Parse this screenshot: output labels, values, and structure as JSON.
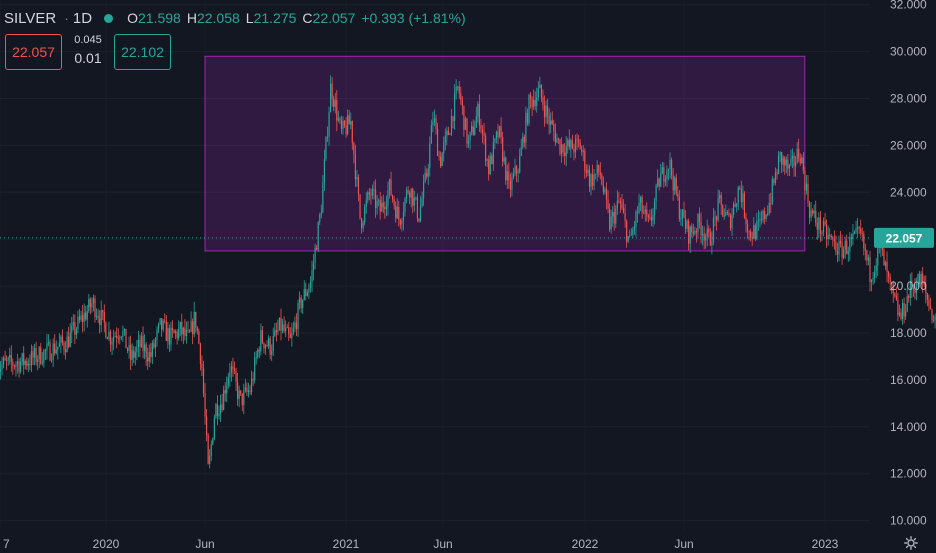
{
  "header": {
    "symbol": "SILVER",
    "separator": "·",
    "timeframe": "1D",
    "status_color": "#26a69a",
    "open_label": "O",
    "open": "21.598",
    "high_label": "H",
    "high": "22.058",
    "low_label": "L",
    "low": "21.275",
    "close_label": "C",
    "close": "22.057",
    "change": "+0.393 (+1.81%)"
  },
  "quote": {
    "sell": "22.057",
    "spread_top": "0.045",
    "spread_bottom": "0.01",
    "buy": "22.102"
  },
  "last_price_label": "22.057",
  "settings_icon": "gear-icon",
  "chart_data": {
    "type": "candlestick",
    "x_tick_labels": [
      "7",
      "2020",
      "Jun",
      "2021",
      "Jun",
      "2022",
      "Jun",
      "2023"
    ],
    "y_tick_labels": [
      "10.000",
      "12.000",
      "14.000",
      "16.000",
      "18.000",
      "20.000",
      "22.000",
      "24.000",
      "26.000",
      "28.000",
      "30.000",
      "32.000"
    ],
    "ylim": [
      9.6,
      32.2
    ],
    "up_color": "#26a69a",
    "down_color": "#ef5350",
    "last_price": 22.057,
    "rectangle": {
      "y_low": 21.5,
      "y_high": 29.8,
      "start": "2020-06",
      "end": "2022-12",
      "color": "#9c27b0"
    },
    "price_path": [
      {
        "t": "2019-11",
        "v": 16.8
      },
      {
        "t": "2019-12",
        "v": 17.6
      },
      {
        "t": "2019-12",
        "v": 19.3
      },
      {
        "t": "2020-01",
        "v": 17.8
      },
      {
        "t": "2020-01",
        "v": 18.2
      },
      {
        "t": "2020-02",
        "v": 16.9
      },
      {
        "t": "2020-02",
        "v": 17.5
      },
      {
        "t": "2020-03",
        "v": 17.0
      },
      {
        "t": "2020-03",
        "v": 18.3
      },
      {
        "t": "2020-04",
        "v": 17.8
      },
      {
        "t": "2020-04",
        "v": 18.1
      },
      {
        "t": "2020-05",
        "v": 17.7
      },
      {
        "t": "2020-05",
        "v": 18.7
      },
      {
        "t": "2020-05",
        "v": 16.7
      },
      {
        "t": "2020-06",
        "v": 12.0
      },
      {
        "t": "2020-06",
        "v": 14.8
      },
      {
        "t": "2020-06",
        "v": 15.1
      },
      {
        "t": "2020-07",
        "v": 16.6
      },
      {
        "t": "2020-07",
        "v": 15.1
      },
      {
        "t": "2020-08",
        "v": 15.6
      },
      {
        "t": "2020-08",
        "v": 17.8
      },
      {
        "t": "2020-09",
        "v": 17.4
      },
      {
        "t": "2020-09",
        "v": 18.3
      },
      {
        "t": "2020-10",
        "v": 17.6
      },
      {
        "t": "2020-10",
        "v": 19.3
      },
      {
        "t": "2020-11",
        "v": 20.2
      },
      {
        "t": "2020-11",
        "v": 23.2
      },
      {
        "t": "2020-12",
        "v": 28.6
      },
      {
        "t": "2020-12",
        "v": 26.5
      },
      {
        "t": "2021-01",
        "v": 27.0
      },
      {
        "t": "2021-01",
        "v": 22.7
      },
      {
        "t": "2021-02",
        "v": 24.0
      },
      {
        "t": "2021-02",
        "v": 23.2
      },
      {
        "t": "2021-03",
        "v": 24.2
      },
      {
        "t": "2021-03",
        "v": 22.8
      },
      {
        "t": "2021-04",
        "v": 24.3
      },
      {
        "t": "2021-04",
        "v": 23.0
      },
      {
        "t": "2021-05",
        "v": 24.8
      },
      {
        "t": "2021-05",
        "v": 27.3
      },
      {
        "t": "2021-05",
        "v": 25.3
      },
      {
        "t": "2021-06",
        "v": 26.5
      },
      {
        "t": "2021-06",
        "v": 28.5
      },
      {
        "t": "2021-07",
        "v": 26.0
      },
      {
        "t": "2021-07",
        "v": 27.5
      },
      {
        "t": "2021-08",
        "v": 25.0
      },
      {
        "t": "2021-08",
        "v": 26.6
      },
      {
        "t": "2021-09",
        "v": 24.1
      },
      {
        "t": "2021-09",
        "v": 25.2
      },
      {
        "t": "2021-10",
        "v": 27.8
      },
      {
        "t": "2021-10",
        "v": 28.3
      },
      {
        "t": "2021-11",
        "v": 27.0
      },
      {
        "t": "2021-11",
        "v": 26.0
      },
      {
        "t": "2021-12",
        "v": 25.9
      },
      {
        "t": "2021-12",
        "v": 26.0
      },
      {
        "t": "2022-01",
        "v": 24.5
      },
      {
        "t": "2022-01",
        "v": 24.9
      },
      {
        "t": "2022-02",
        "v": 22.6
      },
      {
        "t": "2022-02",
        "v": 23.6
      },
      {
        "t": "2022-03",
        "v": 21.8
      },
      {
        "t": "2022-03",
        "v": 23.5
      },
      {
        "t": "2022-04",
        "v": 22.5
      },
      {
        "t": "2022-04",
        "v": 24.5
      },
      {
        "t": "2022-05",
        "v": 25.3
      },
      {
        "t": "2022-05",
        "v": 23.3
      },
      {
        "t": "2022-06",
        "v": 22.2
      },
      {
        "t": "2022-06",
        "v": 22.7
      },
      {
        "t": "2022-07",
        "v": 21.9
      },
      {
        "t": "2022-07",
        "v": 23.5
      },
      {
        "t": "2022-08",
        "v": 22.7
      },
      {
        "t": "2022-08",
        "v": 24.3
      },
      {
        "t": "2022-09",
        "v": 22.2
      },
      {
        "t": "2022-09",
        "v": 22.5
      },
      {
        "t": "2022-10",
        "v": 23.6
      },
      {
        "t": "2022-10",
        "v": 25.5
      },
      {
        "t": "2022-11",
        "v": 24.9
      },
      {
        "t": "2022-11",
        "v": 25.8
      },
      {
        "t": "2022-12",
        "v": 23.2
      },
      {
        "t": "2022-12",
        "v": 22.5
      },
      {
        "t": "2023-01",
        "v": 22.0
      },
      {
        "t": "2023-01",
        "v": 21.5
      },
      {
        "t": "2023-02",
        "v": 21.8
      },
      {
        "t": "2023-02",
        "v": 22.2
      },
      {
        "t": "2023-03",
        "v": 20.5
      },
      {
        "t": "2023-03",
        "v": 21.6
      },
      {
        "t": "2023-04",
        "v": 19.8
      },
      {
        "t": "2023-04",
        "v": 18.6
      },
      {
        "t": "2023-05",
        "v": 19.9
      },
      {
        "t": "2023-05",
        "v": 20.3
      },
      {
        "t": "2023-06",
        "v": 19.0
      },
      {
        "t": "2023-06",
        "v": 17.8
      },
      {
        "t": "2023-07",
        "v": 19.5
      },
      {
        "t": "2023-07",
        "v": 18.5
      },
      {
        "t": "2023-08",
        "v": 20.8
      },
      {
        "t": "2023-08",
        "v": 18.4
      },
      {
        "t": "2023-09",
        "v": 18.5
      },
      {
        "t": "2023-09",
        "v": 19.3
      },
      {
        "t": "2023-10",
        "v": 19.0
      },
      {
        "t": "2023-10",
        "v": 20.5
      },
      {
        "t": "2023-10",
        "v": 22.06
      }
    ]
  }
}
